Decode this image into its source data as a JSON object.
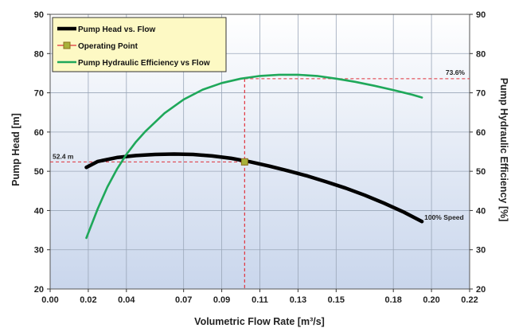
{
  "chart_data": {
    "type": "line",
    "xlabel": "Volumetric Flow Rate [m³/s]",
    "ylabel_left": "Pump Head [m]",
    "ylabel_right": "Pump Hydraulic Efficiency [%]",
    "xlim": [
      0,
      0.22
    ],
    "ylim_left": [
      20,
      90
    ],
    "ylim_right": [
      20,
      90
    ],
    "x_ticks": [
      0,
      0.02,
      0.04,
      0.07,
      0.09,
      0.11,
      0.13,
      0.15,
      0.18,
      0.2,
      0.22
    ],
    "x_tick_labels": [
      "0.00",
      "0.02",
      "0.04",
      "0.07",
      "0.09",
      "0.11",
      "0.13",
      "0.15",
      "0.18",
      "0.20",
      "0.22"
    ],
    "y_ticks_left": [
      20,
      30,
      40,
      50,
      60,
      70,
      80,
      90
    ],
    "y_ticks_right": [
      20,
      30,
      40,
      50,
      60,
      70,
      80,
      90
    ],
    "grid": true,
    "legend_position": "top-left",
    "series": [
      {
        "name": "Pump Head vs. Flow",
        "axis": "left",
        "color": "#000000",
        "x": [
          0.019,
          0.025,
          0.035,
          0.045,
          0.055,
          0.065,
          0.075,
          0.085,
          0.095,
          0.105,
          0.115,
          0.125,
          0.135,
          0.145,
          0.155,
          0.165,
          0.175,
          0.185,
          0.195
        ],
        "y": [
          51.0,
          52.5,
          53.5,
          54.0,
          54.3,
          54.4,
          54.3,
          53.9,
          53.3,
          52.4,
          51.3,
          50.1,
          48.8,
          47.3,
          45.7,
          43.9,
          41.9,
          39.7,
          37.2
        ]
      },
      {
        "name": "Pump Hydraulic Efficiency vs Flow",
        "axis": "right",
        "color": "#1fa85a",
        "x": [
          0.019,
          0.025,
          0.03,
          0.035,
          0.04,
          0.045,
          0.05,
          0.06,
          0.07,
          0.08,
          0.09,
          0.1,
          0.11,
          0.12,
          0.13,
          0.14,
          0.15,
          0.16,
          0.17,
          0.18,
          0.19,
          0.195
        ],
        "y": [
          33.0,
          40.5,
          46.0,
          50.5,
          54.3,
          57.5,
          60.2,
          64.8,
          68.3,
          70.8,
          72.5,
          73.6,
          74.3,
          74.6,
          74.6,
          74.3,
          73.6,
          72.8,
          71.8,
          70.7,
          69.5,
          68.8
        ]
      }
    ],
    "operating_point": {
      "name": "Operating Point",
      "x": 0.102,
      "head": 52.4,
      "efficiency": 73.6,
      "color": "#a8b23a"
    },
    "annotations": {
      "head_value": "52.4 m",
      "efficiency_value": "73.6%",
      "speed_label": "100% Speed"
    }
  }
}
